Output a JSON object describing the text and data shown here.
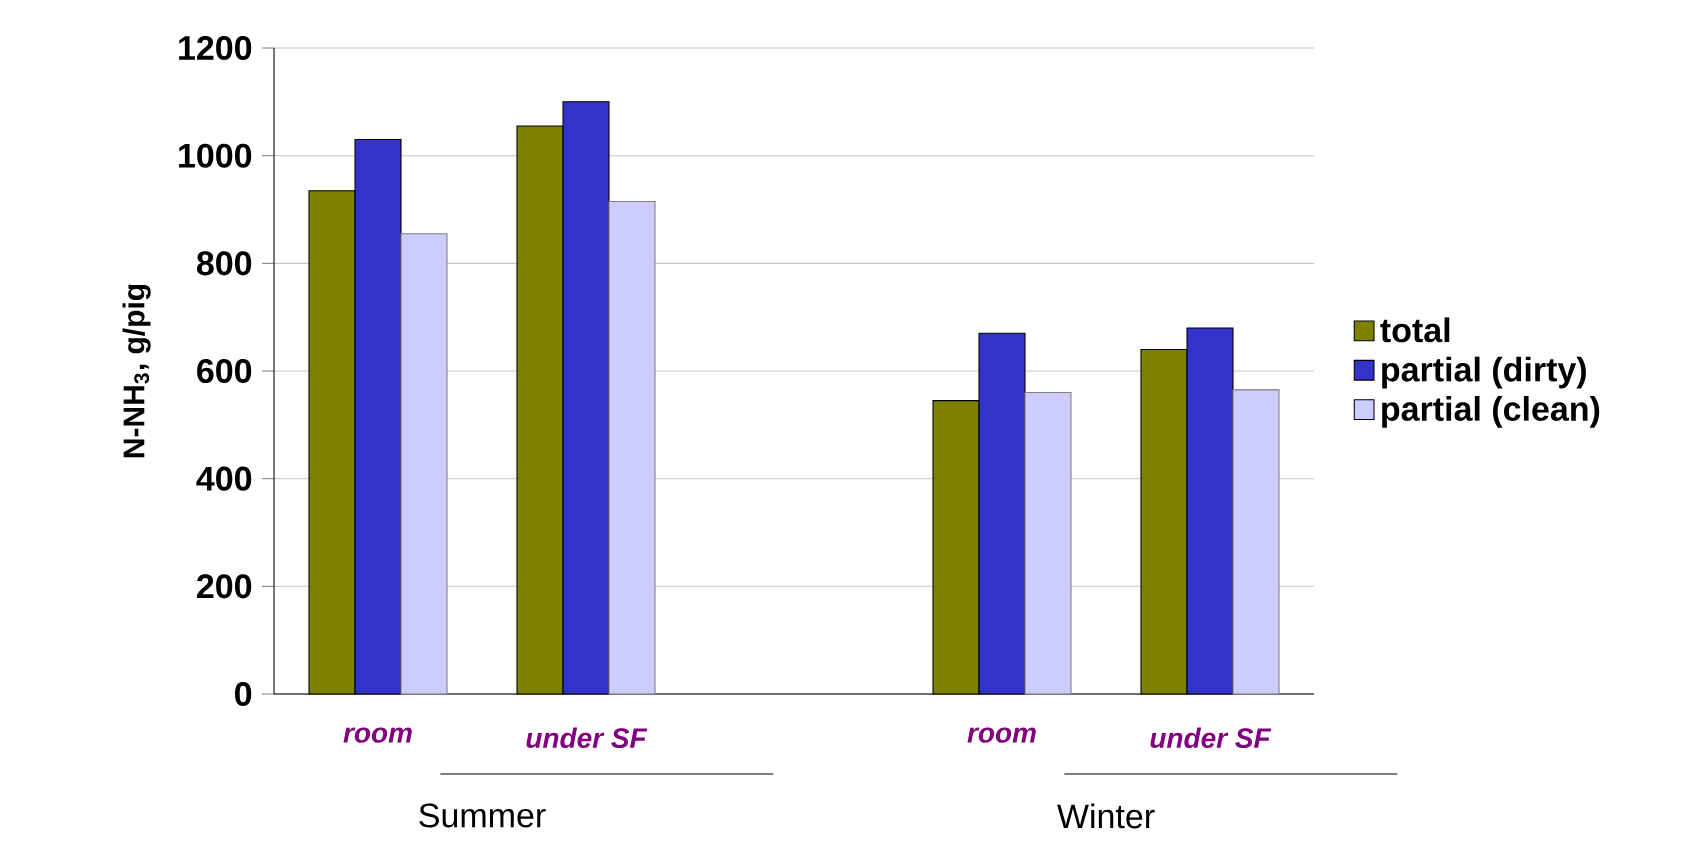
{
  "chart_data": {
    "type": "bar",
    "ylabel": "N-NH$_{3}$, g/pig",
    "categories": [
      "room",
      "under SF",
      null,
      "room",
      "under SF"
    ],
    "series": [
      {
        "name": "total",
        "color": "#808000",
        "values": [
          935,
          1055,
          null,
          545,
          640
        ]
      },
      {
        "name": "partial (dirty)",
        "color": "#3333cc",
        "values": [
          1030,
          1100,
          null,
          670,
          680
        ]
      },
      {
        "name": "partial (clean)",
        "color": "#ccccff",
        "values": [
          855,
          915,
          null,
          560,
          565
        ]
      }
    ],
    "ylim": [
      0,
      1200
    ],
    "yticks": [
      0,
      200,
      400,
      600,
      800,
      1000,
      1200
    ],
    "grid": "y",
    "legend": "right",
    "annotations": [
      "Summer",
      "Winter"
    ]
  }
}
